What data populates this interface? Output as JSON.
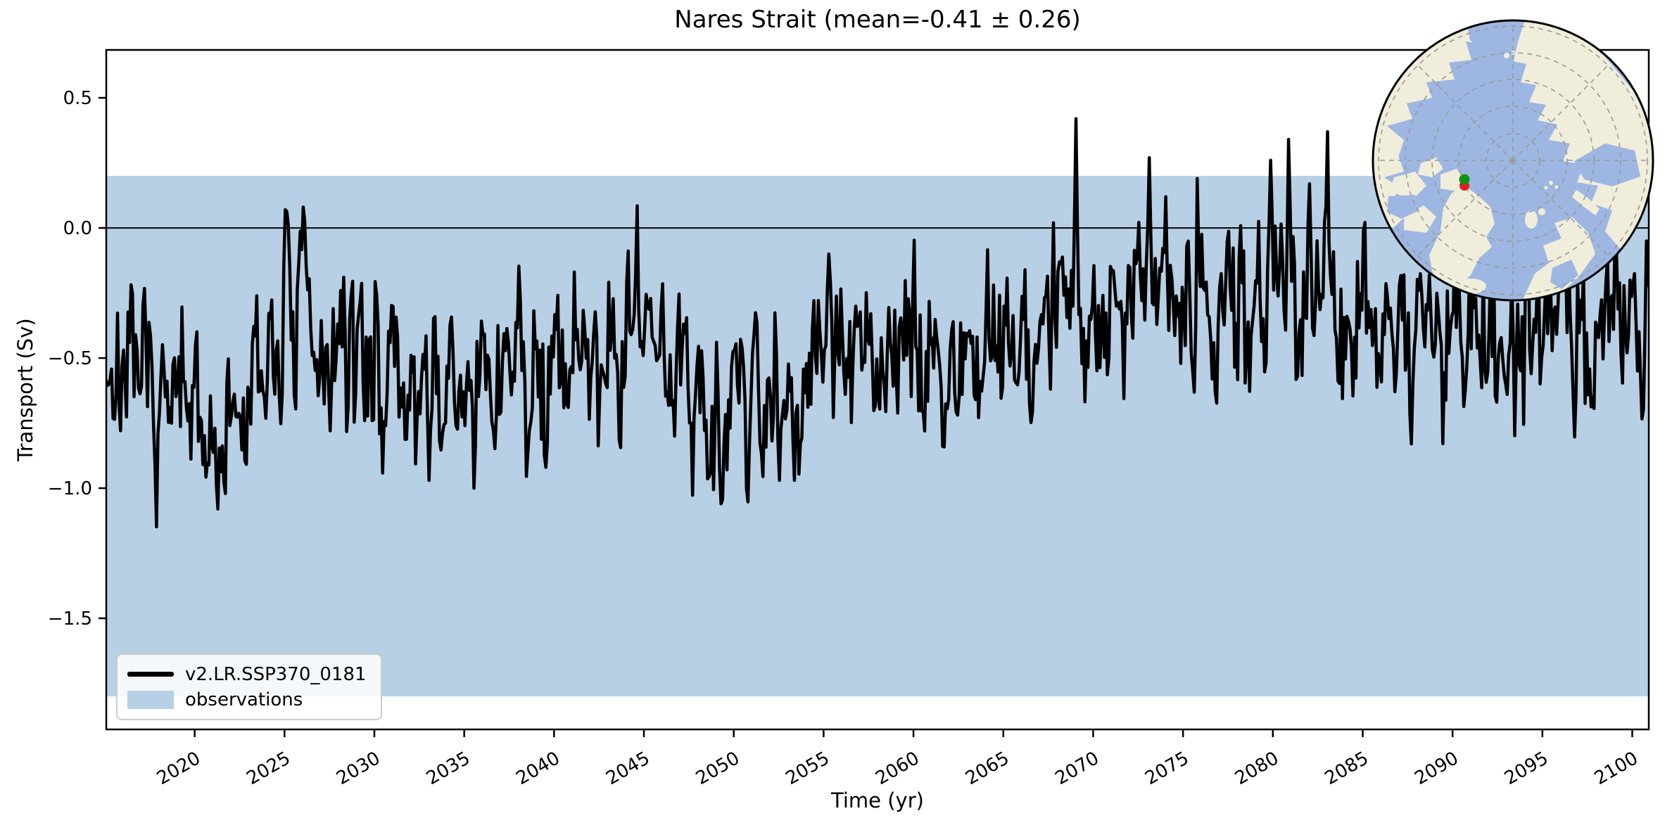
{
  "chart_data": {
    "type": "line",
    "title": "Nares Strait (mean=-0.41 ± 0.26)",
    "xlabel": "Time (yr)",
    "ylabel": "Transport (Sv)",
    "xlim": [
      2015.08,
      2100.92
    ],
    "ylim": [
      -1.927,
      0.684
    ],
    "x_ticks": [
      2020,
      2025,
      2030,
      2035,
      2040,
      2045,
      2050,
      2055,
      2060,
      2065,
      2070,
      2075,
      2080,
      2085,
      2090,
      2095,
      2100
    ],
    "x_tick_labels": [
      "2020",
      "2025",
      "2030",
      "2035",
      "2040",
      "2045",
      "2050",
      "2055",
      "2060",
      "2065",
      "2070",
      "2075",
      "2080",
      "2085",
      "2090",
      "2095",
      "2100"
    ],
    "y_ticks": [
      0.5,
      0.0,
      -0.5,
      -1.0,
      -1.5
    ],
    "y_tick_labels": [
      "0.5",
      "0.0",
      "−0.5",
      "−1.0",
      "−1.5"
    ],
    "zero_line": 0.0,
    "grid": false,
    "legend_position": "lower left",
    "stats": {
      "mean": -0.41,
      "std": 0.26
    },
    "observations_band": {
      "label": "observations",
      "low": -1.8,
      "high": 0.2,
      "color": "#b7d0e5"
    },
    "series": [
      {
        "name": "v2.LR.SSP370_0181",
        "color": "#000000",
        "line_width": 4.5,
        "start_year": 2015,
        "n_months": 1032,
        "baseline_keyframes": [
          [
            2015,
            -0.58
          ],
          [
            2016,
            -0.55
          ],
          [
            2017,
            -0.62
          ],
          [
            2018,
            -0.68
          ],
          [
            2019,
            -0.72
          ],
          [
            2020,
            -0.74
          ],
          [
            2021,
            -0.78
          ],
          [
            2022,
            -0.8
          ],
          [
            2023,
            -0.7
          ],
          [
            2024,
            -0.52
          ],
          [
            2025,
            -0.33
          ],
          [
            2026,
            -0.38
          ],
          [
            2027,
            -0.5
          ],
          [
            2028,
            -0.5
          ],
          [
            2029,
            -0.45
          ],
          [
            2030,
            -0.52
          ],
          [
            2031,
            -0.58
          ],
          [
            2032,
            -0.62
          ],
          [
            2033,
            -0.68
          ],
          [
            2034,
            -0.6
          ],
          [
            2035,
            -0.66
          ],
          [
            2036,
            -0.6
          ],
          [
            2037,
            -0.52
          ],
          [
            2038,
            -0.54
          ],
          [
            2039,
            -0.5
          ],
          [
            2040,
            -0.45
          ],
          [
            2041,
            -0.48
          ],
          [
            2042,
            -0.52
          ],
          [
            2043,
            -0.48
          ],
          [
            2044,
            -0.38
          ],
          [
            2045,
            -0.35
          ],
          [
            2046,
            -0.52
          ],
          [
            2047,
            -0.56
          ],
          [
            2048,
            -0.6
          ],
          [
            2049,
            -0.66
          ],
          [
            2050,
            -0.7
          ],
          [
            2051,
            -0.62
          ],
          [
            2052,
            -0.58
          ],
          [
            2053,
            -0.6
          ],
          [
            2054,
            -0.5
          ],
          [
            2055,
            -0.44
          ],
          [
            2056,
            -0.5
          ],
          [
            2057,
            -0.52
          ],
          [
            2058,
            -0.5
          ],
          [
            2059,
            -0.52
          ],
          [
            2060,
            -0.5
          ],
          [
            2061,
            -0.47
          ],
          [
            2062,
            -0.5
          ],
          [
            2063,
            -0.46
          ],
          [
            2064,
            -0.43
          ],
          [
            2065,
            -0.4
          ],
          [
            2066,
            -0.46
          ],
          [
            2067,
            -0.42
          ],
          [
            2068,
            -0.32
          ],
          [
            2069,
            -0.28
          ],
          [
            2070,
            -0.45
          ],
          [
            2071,
            -0.4
          ],
          [
            2072,
            -0.26
          ],
          [
            2073,
            -0.2
          ],
          [
            2074,
            -0.28
          ],
          [
            2075,
            -0.22
          ],
          [
            2076,
            -0.36
          ],
          [
            2077,
            -0.38
          ],
          [
            2078,
            -0.32
          ],
          [
            2079,
            -0.24
          ],
          [
            2080,
            -0.2
          ],
          [
            2081,
            -0.32
          ],
          [
            2082,
            -0.28
          ],
          [
            2083,
            -0.18
          ],
          [
            2084,
            -0.36
          ],
          [
            2085,
            -0.42
          ],
          [
            2086,
            -0.44
          ],
          [
            2087,
            -0.4
          ],
          [
            2088,
            -0.42
          ],
          [
            2089,
            -0.4
          ],
          [
            2090,
            -0.34
          ],
          [
            2091,
            -0.38
          ],
          [
            2092,
            -0.42
          ],
          [
            2093,
            -0.4
          ],
          [
            2094,
            -0.36
          ],
          [
            2095,
            -0.32
          ],
          [
            2096,
            -0.36
          ],
          [
            2097,
            -0.34
          ],
          [
            2098,
            -0.32
          ],
          [
            2099,
            -0.36
          ],
          [
            2100,
            -0.3
          ]
        ],
        "extremes": [
          [
            2021.33,
            -1.08
          ],
          [
            2025.0,
            0.07
          ],
          [
            2026.08,
            0.08
          ],
          [
            2033.0,
            -0.97
          ],
          [
            2035.5,
            -1.0
          ],
          [
            2039.5,
            -0.92
          ],
          [
            2044.63,
            0.085
          ],
          [
            2049.3,
            -1.06
          ],
          [
            2052.5,
            -0.97
          ],
          [
            2053.4,
            -0.97
          ],
          [
            2055.3,
            -0.1
          ],
          [
            2067.8,
            0.02
          ],
          [
            2069.0,
            0.42
          ],
          [
            2073.1,
            0.27
          ],
          [
            2074.0,
            0.12
          ],
          [
            2075.8,
            0.19
          ],
          [
            2079.9,
            0.26
          ],
          [
            2080.9,
            0.34
          ],
          [
            2082.0,
            0.17
          ],
          [
            2083.0,
            0.37
          ],
          [
            2087.7,
            -0.83
          ],
          [
            2088.7,
            -0.18
          ],
          [
            2099.7,
            -0.48
          ],
          [
            2100.3,
            -0.55
          ],
          [
            2100.75,
            -0.05
          ]
        ],
        "noise": {
          "seed": 7,
          "std": 0.16,
          "ar": 0.3,
          "seasonal_amp": 0.09
        }
      }
    ],
    "legend": {
      "line_label": "v2.LR.SSP370_0181",
      "band_label": "observations"
    }
  },
  "inset_map": {
    "projection": "north-polar-stereographic",
    "ocean_color": "#9db7e2",
    "land_color": "#f0eddb",
    "graticule_color": "#9a9a9a",
    "border_color": "#000000",
    "marker_green_color": "#129412",
    "marker_red_color": "#e11e1e"
  }
}
